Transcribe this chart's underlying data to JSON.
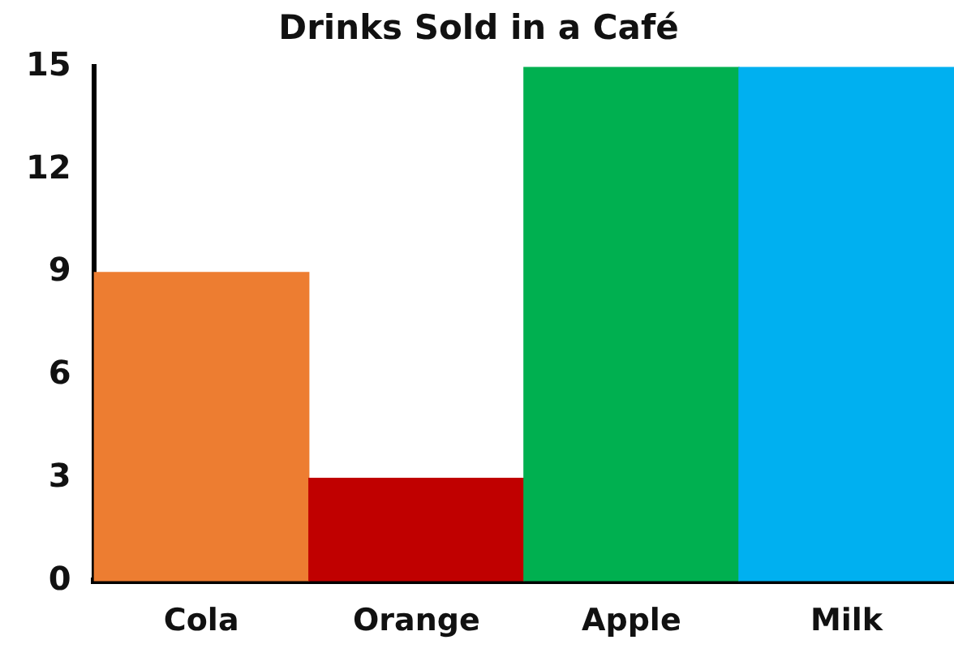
{
  "chart_data": {
    "type": "bar",
    "title": "Drinks Sold in a Café",
    "categories": [
      "Cola",
      "Orange",
      "Apple",
      "Milk"
    ],
    "values": [
      9,
      3,
      15,
      15
    ],
    "colors": [
      "#ed7d31",
      "#c00000",
      "#00b050",
      "#00b0f0"
    ],
    "ylim": [
      0,
      15
    ],
    "yticks": [
      0,
      3,
      6,
      9,
      12,
      15
    ],
    "grid": false,
    "legend": false
  }
}
